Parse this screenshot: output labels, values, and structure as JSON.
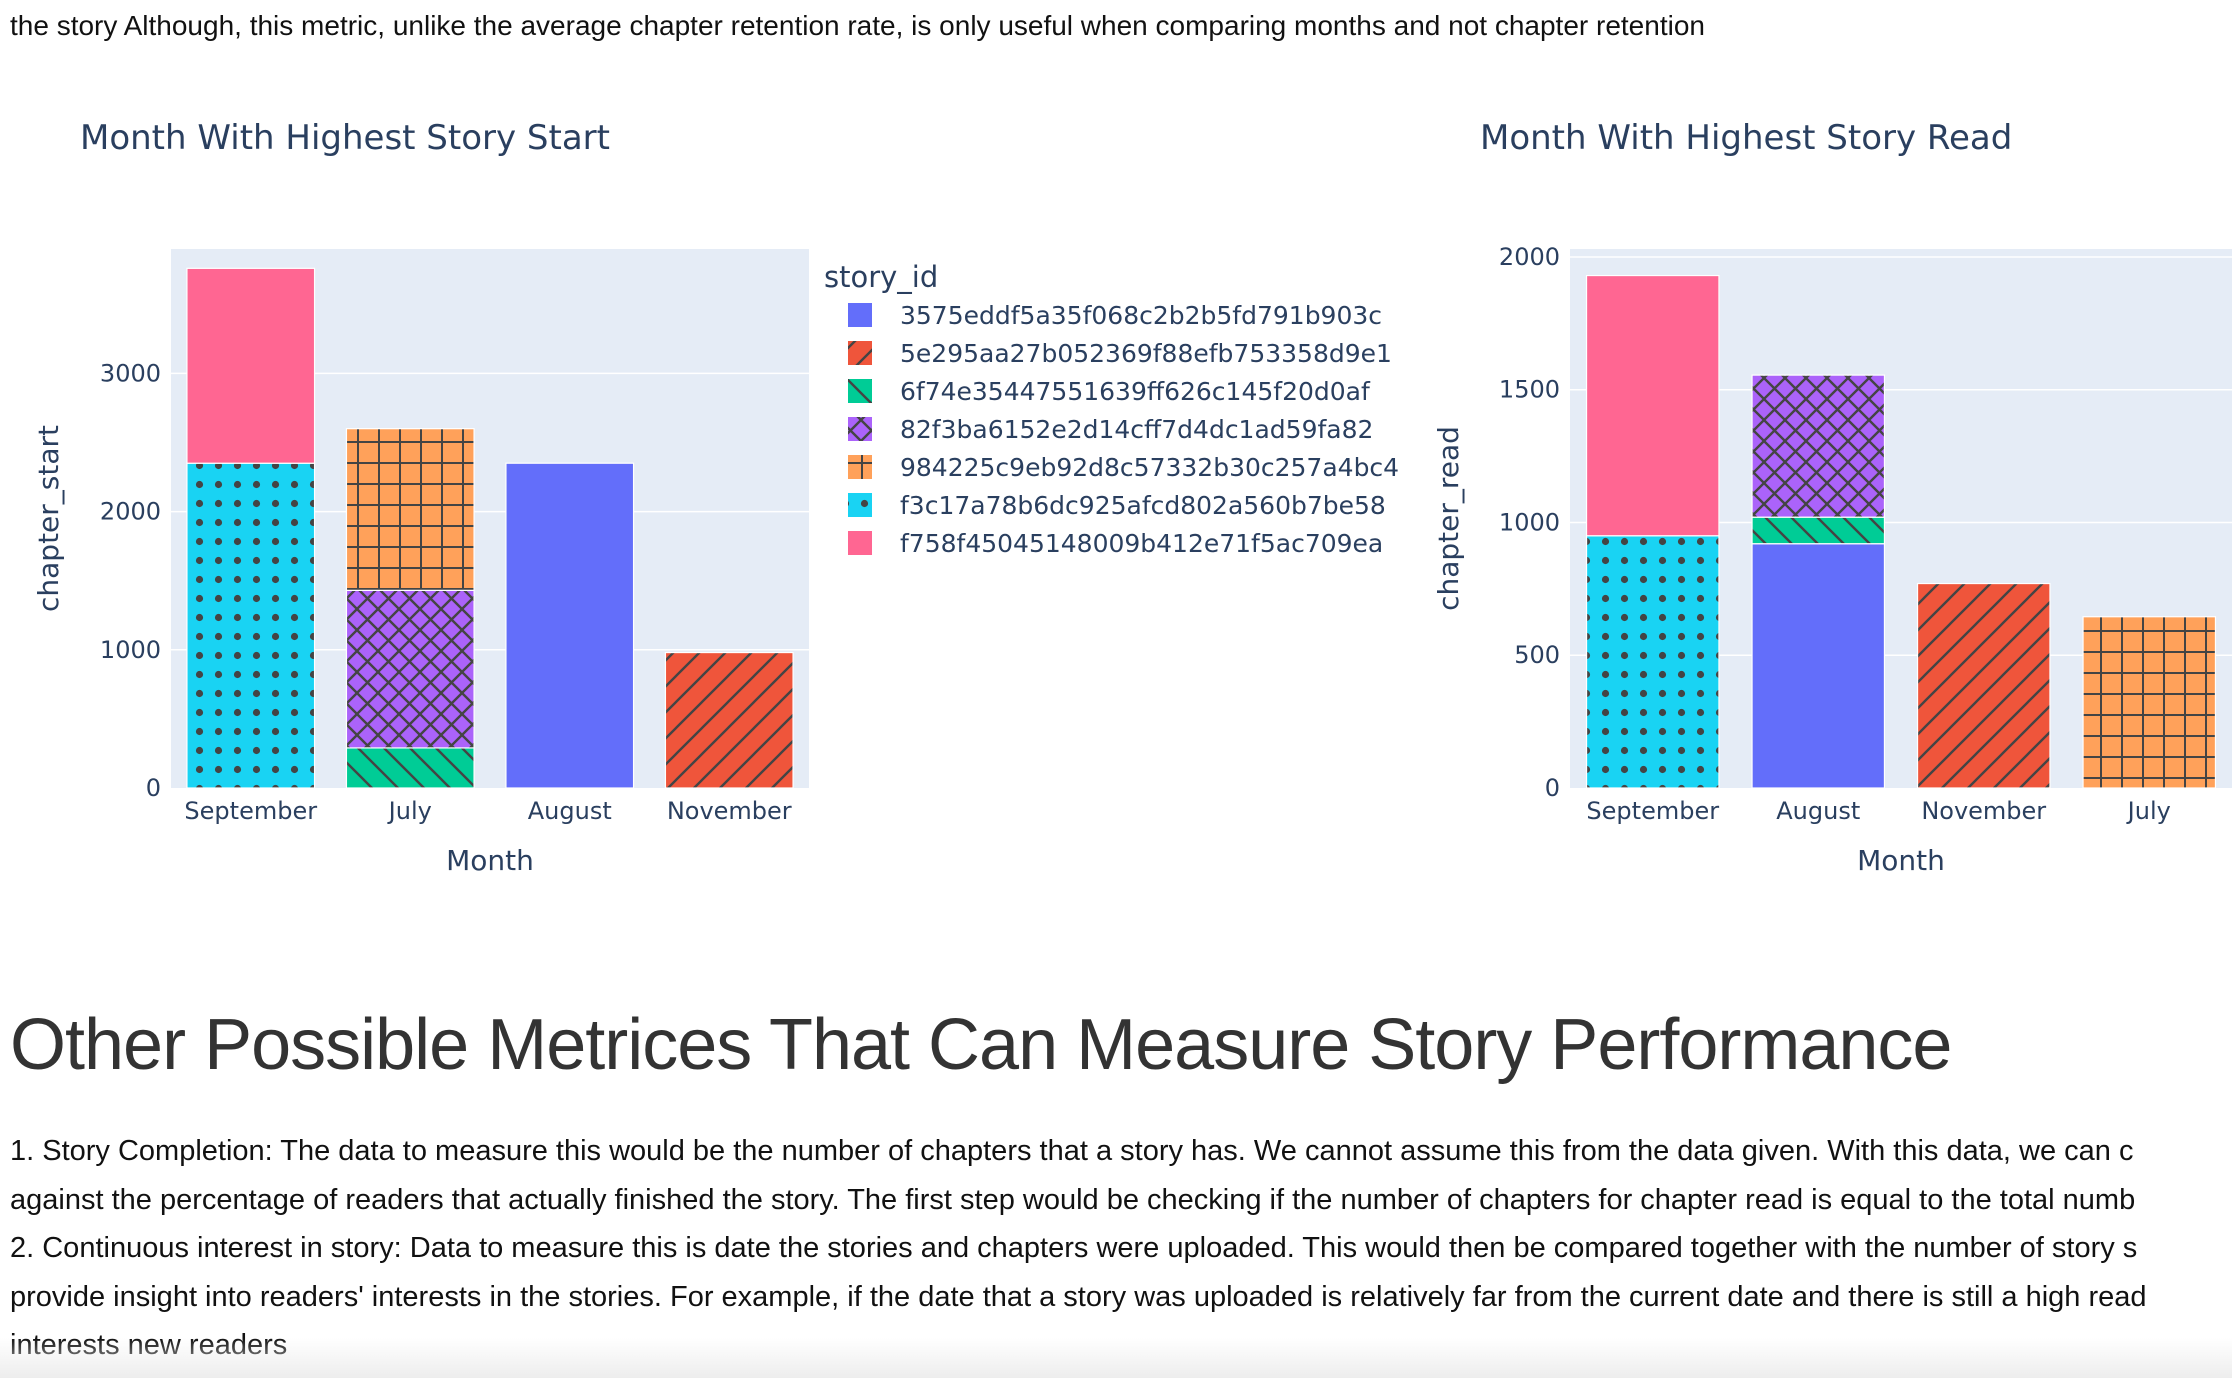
{
  "intro_text": "the story Although, this metric, unlike the average chapter retention rate, is only useful when comparing months and not chapter retention",
  "section_title": "Other Possible Metrices That Can Measure Story Performance",
  "paragraphs": [
    "1. Story Completion: The data to measure this would be the number of chapters that a story has. We cannot assume this from the data given. With this data, we can c",
    "against the percentage of readers that actually finished the story. The first step would be checking if the number of chapters for chapter read is equal to the total numb",
    "2. Continuous interest in story: Data to measure this is date the stories and chapters were uploaded. This would then be compared together with the number of story s",
    "provide insight into readers' interests in the stories. For example, if the date that a story was uploaded is relatively far from the current date and there is still a high read",
    "interests new readers"
  ],
  "legend": {
    "title": "story_id",
    "title_clipped": "s",
    "placement": "right"
  },
  "stories": [
    {
      "id": "3575eddf5a35f068c2b2b5fd791b903c",
      "color": "#636EFA",
      "pattern": "solid"
    },
    {
      "id": "5e295aa27b052369f88efb753358d9e1",
      "color": "#EF553B",
      "pattern": "diagonal"
    },
    {
      "id": "6f74e35447551639ff626c145f20d0af",
      "color": "#00CC96",
      "pattern": "backslash"
    },
    {
      "id": "82f3ba6152e2d14cff7d4dc1ad59fa82",
      "color": "#AB63FA",
      "pattern": "crosshatch"
    },
    {
      "id": "984225c9eb92d8c57332b30c257a4bc4",
      "color": "#FFA15A",
      "pattern": "grid"
    },
    {
      "id": "f3c17a78b6dc925afcd802a560b7be58",
      "color": "#19D3F3",
      "pattern": "dots"
    },
    {
      "id": "f758f45045148009b412e71f5ac709ea",
      "color": "#FF6692",
      "pattern": "solid"
    }
  ],
  "chart_data": [
    {
      "type": "bar",
      "stacked": true,
      "title": "Month With Highest Story Start",
      "xlabel": "Month",
      "ylabel": "chapter_start",
      "categories": [
        "September",
        "July",
        "August",
        "November"
      ],
      "ylim": [
        0,
        3900
      ],
      "yticks": [
        0,
        1000,
        2000,
        3000
      ],
      "grid": true,
      "series": [
        {
          "name": "3575eddf5a35f068c2b2b5fd791b903c",
          "values": [
            0,
            0,
            2350,
            0
          ]
        },
        {
          "name": "5e295aa27b052369f88efb753358d9e1",
          "values": [
            0,
            0,
            0,
            980
          ]
        },
        {
          "name": "6f74e35447551639ff626c145f20d0af",
          "values": [
            0,
            290,
            0,
            0
          ]
        },
        {
          "name": "82f3ba6152e2d14cff7d4dc1ad59fa82",
          "values": [
            0,
            1140,
            0,
            0
          ]
        },
        {
          "name": "984225c9eb92d8c57332b30c257a4bc4",
          "values": [
            0,
            1170,
            0,
            0
          ]
        },
        {
          "name": "f3c17a78b6dc925afcd802a560b7be58",
          "values": [
            2350,
            0,
            0,
            0
          ]
        },
        {
          "name": "f758f45045148009b412e71f5ac709ea",
          "values": [
            1410,
            0,
            0,
            0
          ]
        }
      ]
    },
    {
      "type": "bar",
      "stacked": true,
      "title": "Month With Highest Story Read",
      "xlabel": "Month",
      "ylabel": "chapter_read",
      "categories": [
        "September",
        "August",
        "November",
        "July"
      ],
      "ylim": [
        0,
        2030
      ],
      "yticks": [
        0,
        500,
        1000,
        1500,
        2000
      ],
      "grid": true,
      "series": [
        {
          "name": "3575eddf5a35f068c2b2b5fd791b903c",
          "values": [
            0,
            920,
            0,
            0
          ]
        },
        {
          "name": "5e295aa27b052369f88efb753358d9e1",
          "values": [
            0,
            0,
            770,
            0
          ]
        },
        {
          "name": "6f74e35447551639ff626c145f20d0af",
          "values": [
            0,
            100,
            0,
            0
          ]
        },
        {
          "name": "82f3ba6152e2d14cff7d4dc1ad59fa82",
          "values": [
            0,
            535,
            0,
            0
          ]
        },
        {
          "name": "984225c9eb92d8c57332b30c257a4bc4",
          "values": [
            0,
            0,
            0,
            645
          ]
        },
        {
          "name": "f3c17a78b6dc925afcd802a560b7be58",
          "values": [
            950,
            0,
            0,
            0
          ]
        },
        {
          "name": "f758f45045148009b412e71f5ac709ea",
          "values": [
            980,
            0,
            0,
            0
          ]
        }
      ]
    }
  ]
}
